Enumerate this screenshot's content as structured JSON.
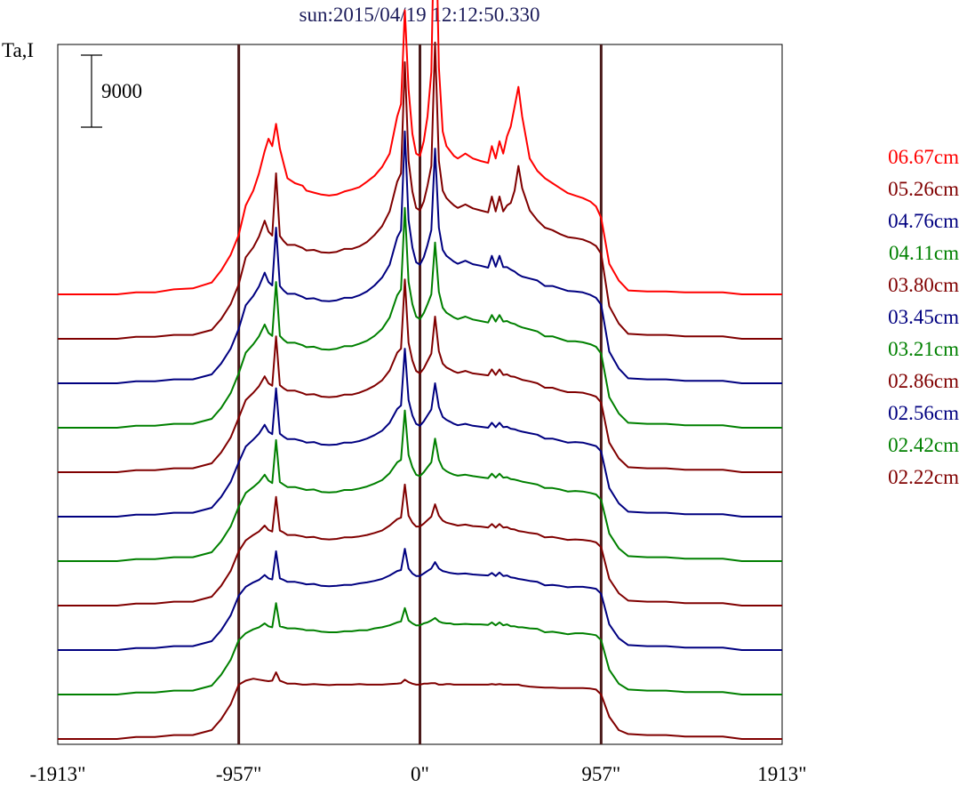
{
  "chart_data": {
    "type": "line",
    "title": "sun:2015/04/19 12:12:50.330",
    "ylabel": "Ta,I",
    "scale_bar_label": "9000",
    "scale_bar_value": 9000,
    "xlim": [
      -1913,
      1913
    ],
    "x_ticks": [
      {
        "value": -1913,
        "label": "-1913\""
      },
      {
        "value": -957,
        "label": "-957\""
      },
      {
        "value": 0,
        "label": "0\""
      },
      {
        "value": 957,
        "label": "957\""
      },
      {
        "value": 1913,
        "label": "1913\""
      }
    ],
    "vertical_markers": [
      -957,
      0,
      957
    ],
    "marker_color": "#4a1a1a",
    "offset_step": 9000,
    "x": [
      -1913,
      -1800,
      -1700,
      -1600,
      -1500,
      -1400,
      -1300,
      -1200,
      -1100,
      -1050,
      -1000,
      -957,
      -920,
      -880,
      -850,
      -820,
      -800,
      -780,
      -760,
      -740,
      -720,
      -700,
      -660,
      -620,
      -600,
      -560,
      -520,
      -480,
      -440,
      -400,
      -360,
      -320,
      -280,
      -240,
      -200,
      -160,
      -120,
      -100,
      -80,
      -60,
      -40,
      -20,
      0,
      20,
      40,
      60,
      80,
      100,
      120,
      140,
      160,
      180,
      200,
      240,
      280,
      320,
      360,
      380,
      400,
      420,
      440,
      460,
      480,
      500,
      520,
      540,
      580,
      620,
      660,
      700,
      740,
      780,
      820,
      860,
      900,
      930,
      957,
      1000,
      1050,
      1100,
      1200,
      1300,
      1400,
      1500,
      1600,
      1700,
      1800,
      1913
    ],
    "series": [
      {
        "name": "02.22cm",
        "color": "#800000",
        "values": [
          0,
          0,
          0,
          0,
          400,
          400,
          800,
          800,
          1800,
          4000,
          7000,
          11000,
          11800,
          12200,
          12000,
          11800,
          11700,
          11800,
          13500,
          11800,
          11500,
          11200,
          11200,
          11000,
          11000,
          11100,
          11000,
          10900,
          11000,
          11000,
          11000,
          11100,
          11000,
          11000,
          11000,
          11100,
          11200,
          11300,
          12000,
          11500,
          11200,
          11000,
          11000,
          11200,
          11200,
          11300,
          11300,
          11000,
          11000,
          11100,
          11100,
          11000,
          11000,
          11000,
          11000,
          11000,
          11000,
          11100,
          11000,
          11100,
          11000,
          11000,
          11000,
          11000,
          11000,
          10800,
          10600,
          10500,
          10400,
          10400,
          10300,
          10300,
          10300,
          10300,
          10200,
          10000,
          9000,
          4500,
          1800,
          1000,
          800,
          800,
          500,
          500,
          500,
          0,
          0,
          0
        ]
      },
      {
        "name": "02.42cm",
        "color": "#008000",
        "values": [
          0,
          0,
          0,
          0,
          400,
          400,
          800,
          800,
          1800,
          4000,
          7000,
          11000,
          12400,
          13200,
          13600,
          14400,
          13800,
          13600,
          18500,
          13800,
          13600,
          13400,
          13400,
          13200,
          13000,
          13000,
          12700,
          12600,
          12600,
          12800,
          12800,
          13000,
          13000,
          13400,
          13600,
          14000,
          14600,
          14800,
          17500,
          15000,
          14400,
          14000,
          14000,
          14400,
          14600,
          15000,
          15500,
          14800,
          14500,
          14400,
          14400,
          14200,
          14200,
          14300,
          14200,
          14200,
          14100,
          14600,
          14000,
          14600,
          14000,
          14200,
          13800,
          13800,
          13600,
          13600,
          13400,
          13300,
          12600,
          12700,
          12500,
          12200,
          12400,
          12400,
          12200,
          12000,
          11000,
          5000,
          2200,
          1000,
          800,
          800,
          500,
          500,
          500,
          0,
          0,
          0
        ]
      },
      {
        "name": "02.56cm",
        "color": "#000080",
        "values": [
          0,
          0,
          0,
          0,
          400,
          400,
          800,
          800,
          1800,
          4000,
          7000,
          11000,
          12800,
          13700,
          14200,
          15200,
          14500,
          14300,
          20000,
          14500,
          14200,
          13800,
          13800,
          13500,
          13300,
          13400,
          13000,
          12900,
          13000,
          13200,
          13200,
          13500,
          13700,
          14000,
          14400,
          15100,
          16000,
          16200,
          20500,
          16500,
          15500,
          15000,
          15000,
          15500,
          16000,
          16500,
          17800,
          16500,
          16000,
          15800,
          15600,
          15500,
          15400,
          15500,
          15300,
          15200,
          15100,
          15600,
          15000,
          15700,
          15000,
          15100,
          14700,
          14600,
          14400,
          14300,
          14000,
          13800,
          13100,
          13200,
          13000,
          12700,
          12800,
          12800,
          12600,
          12400,
          11400,
          5200,
          2400,
          1000,
          800,
          800,
          500,
          500,
          500,
          0,
          0,
          0
        ]
      },
      {
        "name": "02.86cm",
        "color": "#800000",
        "values": [
          0,
          0,
          0,
          0,
          400,
          400,
          800,
          800,
          1800,
          4000,
          7000,
          11000,
          13200,
          14300,
          15000,
          16200,
          15300,
          15000,
          22000,
          15200,
          14800,
          14300,
          14300,
          14000,
          13800,
          13900,
          13500,
          13400,
          13500,
          13800,
          13800,
          14000,
          14300,
          14700,
          15200,
          16200,
          17500,
          17800,
          24500,
          18200,
          16800,
          16000,
          16000,
          16600,
          17300,
          18000,
          20500,
          18200,
          17200,
          16800,
          16600,
          16400,
          16200,
          16400,
          16100,
          16000,
          15800,
          16500,
          15800,
          16500,
          15800,
          15900,
          15500,
          15400,
          15100,
          15000,
          14700,
          14500,
          13800,
          13900,
          13600,
          13300,
          13400,
          13300,
          13100,
          12800,
          11800,
          5400,
          2500,
          1000,
          800,
          800,
          500,
          500,
          500,
          0,
          0,
          0
        ]
      },
      {
        "name": "03.21cm",
        "color": "#008000",
        "values": [
          0,
          0,
          0,
          0,
          400,
          400,
          800,
          800,
          1800,
          4000,
          7000,
          11000,
          13800,
          15000,
          16000,
          17500,
          16300,
          15800,
          24500,
          16000,
          15500,
          15000,
          15000,
          14600,
          14400,
          14500,
          14000,
          13900,
          14000,
          14400,
          14400,
          14700,
          15100,
          15700,
          16400,
          17800,
          20000,
          20500,
          30500,
          21500,
          19000,
          17500,
          17200,
          18000,
          19000,
          20000,
          24800,
          20500,
          18800,
          18200,
          17800,
          17500,
          17300,
          17500,
          17200,
          17000,
          16800,
          17700,
          16900,
          17700,
          16900,
          17000,
          16600,
          16500,
          16300,
          16100,
          15800,
          15500,
          14800,
          14800,
          14500,
          14100,
          14200,
          14100,
          13800,
          13500,
          12400,
          5600,
          2600,
          1000,
          800,
          800,
          500,
          500,
          500,
          0,
          0,
          0
        ]
      },
      {
        "name": "03.45cm",
        "color": "#000080",
        "values": [
          0,
          0,
          0,
          0,
          400,
          400,
          800,
          800,
          1800,
          4000,
          7000,
          11000,
          14200,
          15600,
          16800,
          18600,
          17200,
          16700,
          26000,
          16800,
          16200,
          15700,
          15700,
          15300,
          15000,
          15100,
          14600,
          14500,
          14600,
          15000,
          15000,
          15300,
          15800,
          16500,
          17400,
          19000,
          21800,
          22500,
          34000,
          23600,
          20500,
          18800,
          18400,
          19300,
          20500,
          21700,
          27000,
          22200,
          20200,
          19600,
          19200,
          18800,
          18500,
          18800,
          18400,
          18200,
          18000,
          19000,
          18100,
          19000,
          18100,
          18200,
          17800,
          17700,
          17400,
          17200,
          16900,
          16600,
          15800,
          15800,
          15400,
          15000,
          15100,
          15000,
          14600,
          14300,
          13200,
          5800,
          2700,
          1000,
          800,
          800,
          500,
          500,
          500,
          0,
          0,
          0
        ]
      },
      {
        "name": "03.80cm",
        "color": "#800000",
        "values": [
          0,
          0,
          0,
          0,
          400,
          400,
          800,
          800,
          1800,
          4000,
          7000,
          11000,
          14600,
          16100,
          17400,
          19400,
          18000,
          17500,
          27500,
          17600,
          17000,
          16500,
          16500,
          16000,
          15700,
          15800,
          15300,
          15200,
          15300,
          15700,
          15700,
          16100,
          16700,
          17500,
          18600,
          20600,
          24200,
          25000,
          39000,
          26200,
          22600,
          20500,
          20000,
          21000,
          22500,
          24000,
          31500,
          24500,
          22000,
          21200,
          20800,
          20400,
          20100,
          20500,
          20000,
          19800,
          19600,
          20800,
          19700,
          20800,
          19700,
          19800,
          19400,
          19300,
          19000,
          18700,
          18400,
          18000,
          17100,
          17100,
          16600,
          16200,
          16200,
          16100,
          15700,
          15300,
          14100,
          6000,
          2800,
          1000,
          800,
          800,
          500,
          500,
          500,
          0,
          0,
          0
        ]
      },
      {
        "name": "04.11cm",
        "color": "#008000",
        "values": [
          0,
          0,
          0,
          0,
          400,
          400,
          800,
          800,
          1800,
          4000,
          7000,
          11000,
          15200,
          16900,
          18500,
          20900,
          19200,
          18600,
          29500,
          18600,
          17800,
          17200,
          17200,
          16700,
          16300,
          16400,
          15900,
          15800,
          16000,
          16500,
          16500,
          17000,
          17600,
          18600,
          20000,
          22300,
          26800,
          28000,
          44500,
          29500,
          25000,
          22500,
          22000,
          23200,
          25000,
          27000,
          37500,
          27500,
          24300,
          23300,
          22800,
          22300,
          22000,
          22500,
          21900,
          21600,
          21300,
          22800,
          21500,
          22800,
          21500,
          21600,
          21200,
          21000,
          20600,
          20300,
          19900,
          19500,
          18500,
          18500,
          18000,
          17500,
          17500,
          17300,
          16900,
          16400,
          15000,
          6200,
          2900,
          1000,
          800,
          800,
          500,
          500,
          500,
          0,
          0,
          0
        ]
      },
      {
        "name": "04.76cm",
        "color": "#000080",
        "values": [
          0,
          0,
          0,
          0,
          400,
          400,
          800,
          800,
          1800,
          4000,
          7000,
          11000,
          15800,
          17700,
          19600,
          22400,
          20500,
          19800,
          31500,
          19700,
          18800,
          18100,
          18100,
          17500,
          17100,
          17200,
          16700,
          16600,
          16800,
          17300,
          17300,
          17800,
          18600,
          19800,
          21400,
          24000,
          29500,
          31000,
          51000,
          33000,
          27500,
          24500,
          24000,
          25500,
          28000,
          31000,
          47500,
          31500,
          27000,
          25800,
          25200,
          24600,
          24200,
          24800,
          24100,
          23800,
          23400,
          25800,
          23600,
          25800,
          23500,
          23500,
          23000,
          22600,
          22000,
          21600,
          21200,
          20800,
          19700,
          19700,
          19200,
          18700,
          18600,
          18400,
          17900,
          17300,
          15900,
          6400,
          3000,
          1000,
          800,
          800,
          500,
          500,
          500,
          0,
          0,
          0
        ]
      },
      {
        "name": "05.26cm",
        "color": "#800000",
        "values": [
          0,
          0,
          0,
          0,
          400,
          400,
          800,
          800,
          1800,
          4000,
          7000,
          11000,
          16500,
          18500,
          20700,
          23900,
          21700,
          20900,
          33500,
          20800,
          19800,
          19000,
          19000,
          18400,
          17900,
          18000,
          17500,
          17400,
          17600,
          18200,
          18200,
          18700,
          19600,
          21000,
          22800,
          25800,
          31800,
          33500,
          56000,
          36000,
          29800,
          26500,
          26000,
          27800,
          31000,
          35000,
          60000,
          36000,
          30000,
          28500,
          27700,
          27000,
          26500,
          27200,
          26400,
          26000,
          25600,
          28800,
          25800,
          28800,
          25800,
          27000,
          27500,
          30000,
          35000,
          30500,
          26000,
          24000,
          22500,
          22000,
          21200,
          20600,
          20400,
          20100,
          19500,
          18800,
          17200,
          6600,
          3100,
          1000,
          800,
          800,
          500,
          500,
          500,
          0,
          0,
          0
        ]
      },
      {
        "name": "06.67cm",
        "color": "#ff0000",
        "values": [
          0,
          0,
          0,
          0,
          400,
          400,
          1000,
          1200,
          2400,
          4800,
          8000,
          12000,
          18000,
          21000,
          24500,
          29000,
          31500,
          30000,
          34500,
          29500,
          26500,
          23500,
          22500,
          22000,
          21000,
          20600,
          20200,
          20000,
          20200,
          20800,
          21200,
          21700,
          22800,
          24000,
          25800,
          28500,
          36000,
          38500,
          57500,
          41500,
          32500,
          28500,
          28000,
          31000,
          36000,
          45000,
          84500,
          46000,
          33000,
          30000,
          29000,
          28000,
          27500,
          28500,
          27500,
          27000,
          26600,
          30000,
          27500,
          31000,
          28500,
          32000,
          34000,
          38000,
          42000,
          36000,
          27500,
          25000,
          23500,
          22500,
          21500,
          20500,
          20000,
          19500,
          18800,
          17800,
          15500,
          6200,
          2800,
          800,
          600,
          600,
          400,
          400,
          400,
          0,
          0,
          0
        ]
      }
    ]
  }
}
